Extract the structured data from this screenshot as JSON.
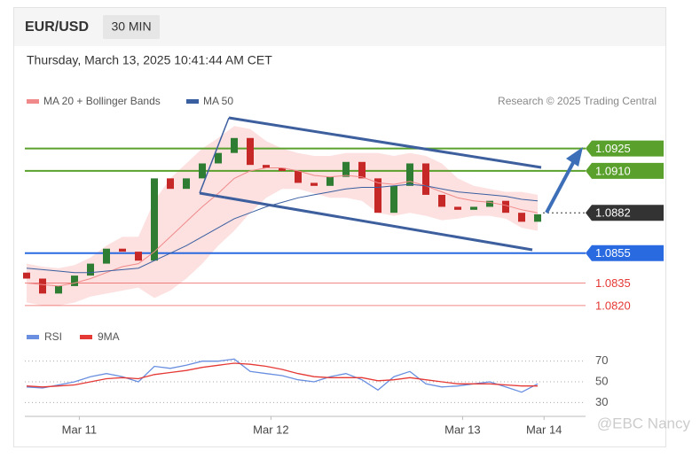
{
  "header": {
    "symbol": "EUR/USD",
    "timeframe": "30 MIN"
  },
  "timestamp": "Thursday, March 13, 2025 10:41:44 AM CET",
  "watermark": "@EBC Nancy",
  "chart_data": [
    {
      "type": "candlestick",
      "credit": "Research © 2025 Trading Central",
      "up_color": "#2e7d32",
      "down_color": "#c62828",
      "xlim": [
        0,
        33.5
      ],
      "ylim": [
        1.0814,
        1.0968
      ],
      "open": [
        1.0842,
        1.0838,
        1.0828,
        1.0833,
        1.084,
        1.0848,
        1.0858,
        1.0856,
        1.085,
        1.0905,
        1.0898,
        1.0905,
        1.0915,
        1.0922,
        1.0932,
        1.0914,
        1.0912,
        1.091,
        1.0902,
        1.09,
        1.0906,
        1.0916,
        1.0905,
        1.0882,
        1.09,
        1.0915,
        1.0894,
        1.0886,
        1.0884,
        1.0886,
        1.089,
        1.0882,
        1.0876
      ],
      "close": [
        1.0838,
        1.0828,
        1.0833,
        1.084,
        1.0848,
        1.0858,
        1.0856,
        1.085,
        1.0905,
        1.0898,
        1.0905,
        1.0915,
        1.0922,
        1.0932,
        1.0914,
        1.0912,
        1.091,
        1.0902,
        1.09,
        1.0906,
        1.0916,
        1.0905,
        1.0882,
        1.09,
        1.0915,
        1.0894,
        1.0886,
        1.0884,
        1.0886,
        1.089,
        1.0882,
        1.0876,
        1.0881
      ],
      "series": [
        {
          "name": "MA 20 + Bollinger Bands",
          "color": "#f08a8a",
          "band_color": "#fde0e0",
          "values": [
            1.0835,
            1.0834,
            1.0833,
            1.0835,
            1.0838,
            1.0842,
            1.0846,
            1.0848,
            1.0856,
            1.0866,
            1.0876,
            1.0886,
            1.0895,
            1.0905,
            1.091,
            1.0912,
            1.0912,
            1.091,
            1.0907,
            1.0906,
            1.0907,
            1.0906,
            1.0902,
            1.0901,
            1.0903,
            1.09,
            1.0896,
            1.0892,
            1.089,
            1.0889,
            1.0887,
            1.0884,
            1.0882
          ],
          "upper": [
            1.0848,
            1.0846,
            1.0845,
            1.0847,
            1.0852,
            1.086,
            1.0866,
            1.0866,
            1.089,
            1.0905,
            1.0915,
            1.0925,
            1.0932,
            1.094,
            1.0938,
            1.093,
            1.0925,
            1.0922,
            1.092,
            1.092,
            1.0922,
            1.0922,
            1.0922,
            1.092,
            1.0922,
            1.092,
            1.0915,
            1.0905,
            1.09,
            1.0898,
            1.0896,
            1.0896,
            1.0894
          ],
          "lower": [
            1.0822,
            1.082,
            1.082,
            1.0822,
            1.0826,
            1.0828,
            1.083,
            1.0832,
            1.0825,
            1.083,
            1.0838,
            1.0848,
            1.086,
            1.087,
            1.0882,
            1.0892,
            1.0898,
            1.0898,
            1.0895,
            1.0892,
            1.0892,
            1.089,
            1.0882,
            1.088,
            1.0882,
            1.088,
            1.0877,
            1.0878,
            1.088,
            1.088,
            1.0878,
            1.0872,
            1.087
          ]
        },
        {
          "name": "MA 50",
          "color": "#3a5fa0",
          "values": [
            1.0845,
            1.0844,
            1.0843,
            1.0842,
            1.0842,
            1.0843,
            1.0844,
            1.0845,
            1.085,
            1.0855,
            1.086,
            1.0866,
            1.0872,
            1.0878,
            1.0882,
            1.0886,
            1.0889,
            1.0892,
            1.0894,
            1.0896,
            1.0898,
            1.0899,
            1.0899,
            1.09,
            1.0901,
            1.09,
            1.0898,
            1.0896,
            1.0895,
            1.0894,
            1.0893,
            1.0891,
            1.089
          ]
        }
      ],
      "levels": [
        {
          "value": 1.0925,
          "label": "1.0925",
          "color": "#5aa02c",
          "boxed": true
        },
        {
          "value": 1.091,
          "label": "1.0910",
          "color": "#5aa02c",
          "boxed": true
        },
        {
          "value": 1.0882,
          "label": "1.0882",
          "color": "#333333",
          "boxed": true
        },
        {
          "value": 1.0855,
          "label": "1.0855",
          "color": "#2a6ae0",
          "boxed": true
        },
        {
          "value": 1.0835,
          "label": "1.0835",
          "color": "#e53935",
          "boxed": false
        },
        {
          "value": 1.082,
          "label": "1.0820",
          "color": "#e53935",
          "boxed": false
        }
      ]
    },
    {
      "type": "line",
      "xlim": [
        0,
        33.5
      ],
      "ylim": [
        20,
        80
      ],
      "yticks": [
        70,
        50,
        30
      ],
      "xticks": [
        {
          "value": 3.3,
          "label": "Mar 11"
        },
        {
          "value": 15.3,
          "label": "Mar 12"
        },
        {
          "value": 27.3,
          "label": "Mar 13"
        },
        {
          "value": 32.4,
          "label": "Mar 14"
        }
      ],
      "series": [
        {
          "name": "RSI",
          "color": "#6a8fe0",
          "values": [
            45,
            44,
            47,
            50,
            55,
            58,
            55,
            50,
            65,
            63,
            66,
            70,
            70,
            72,
            60,
            58,
            56,
            52,
            50,
            55,
            58,
            52,
            42,
            55,
            60,
            48,
            45,
            46,
            48,
            50,
            45,
            40,
            48
          ]
        },
        {
          "name": "9MA",
          "color": "#e53935",
          "values": [
            46,
            45,
            46,
            47,
            50,
            53,
            54,
            53,
            57,
            59,
            61,
            64,
            66,
            68,
            67,
            65,
            62,
            58,
            55,
            54,
            54,
            54,
            51,
            52,
            54,
            52,
            50,
            48,
            48,
            48,
            47,
            46,
            46
          ]
        }
      ]
    }
  ]
}
